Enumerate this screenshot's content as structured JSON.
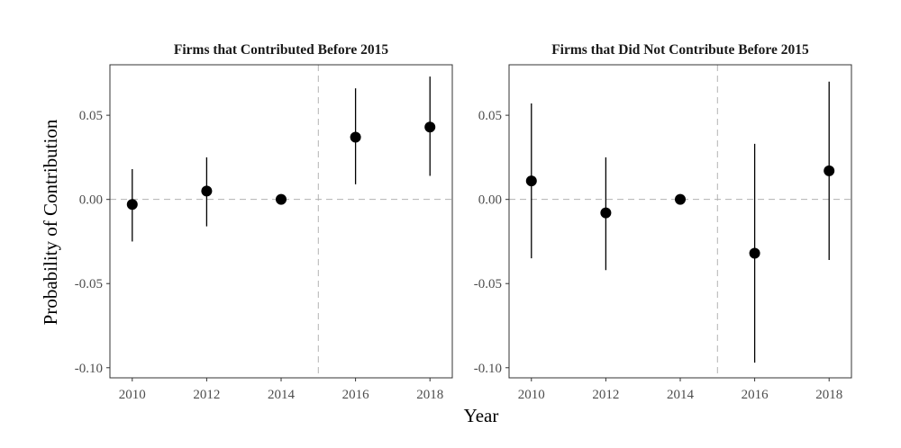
{
  "chart_data": {
    "type": "scatter",
    "style": "point-with-error-bars, faceted",
    "xlabel": "Year",
    "ylabel": "Probability of Contribution",
    "xlim": [
      2009.4,
      2018.6
    ],
    "ylim": [
      -0.106,
      0.08
    ],
    "xticks": [
      2010,
      2012,
      2014,
      2016,
      2018
    ],
    "xtick_labels": [
      "2010",
      "2012",
      "2014",
      "2016",
      "2018"
    ],
    "yticks": [
      -0.1,
      -0.05,
      0.0,
      0.05
    ],
    "ytick_labels": [
      "-0.10",
      "-0.05",
      "0.00",
      "0.05"
    ],
    "reference_lines": {
      "horizontal_y": 0.0,
      "vertical_x": 2015
    },
    "grid": false,
    "colors": {
      "point": "#000000",
      "refline": "#b3b3b3",
      "frame": "#333333"
    },
    "panels": [
      {
        "title": "Firms that Contributed Before 2015",
        "points": [
          {
            "x": 2010,
            "y": -0.003,
            "lo": -0.025,
            "hi": 0.018
          },
          {
            "x": 2012,
            "y": 0.005,
            "lo": -0.016,
            "hi": 0.025
          },
          {
            "x": 2014,
            "y": 0.0,
            "lo": 0.0,
            "hi": 0.0
          },
          {
            "x": 2016,
            "y": 0.037,
            "lo": 0.009,
            "hi": 0.066
          },
          {
            "x": 2018,
            "y": 0.043,
            "lo": 0.014,
            "hi": 0.073
          }
        ]
      },
      {
        "title": "Firms that Did Not Contribute Before 2015",
        "points": [
          {
            "x": 2010,
            "y": 0.011,
            "lo": -0.035,
            "hi": 0.057
          },
          {
            "x": 2012,
            "y": -0.008,
            "lo": -0.042,
            "hi": 0.025
          },
          {
            "x": 2014,
            "y": 0.0,
            "lo": 0.0,
            "hi": 0.0
          },
          {
            "x": 2016,
            "y": -0.032,
            "lo": -0.097,
            "hi": 0.033
          },
          {
            "x": 2018,
            "y": 0.017,
            "lo": -0.036,
            "hi": 0.07
          }
        ]
      }
    ]
  }
}
